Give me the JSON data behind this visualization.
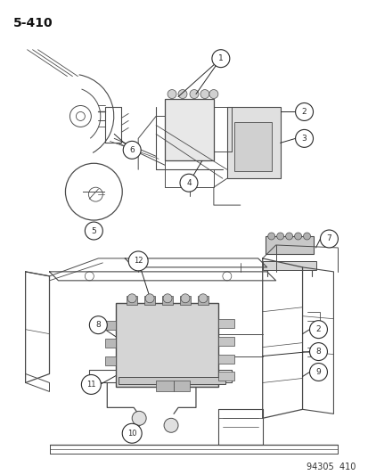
{
  "title": "5–410",
  "footer": "94305  410",
  "bg_color": "#ffffff",
  "lc": "#4a4a4a",
  "cc": "#2a2a2a",
  "figsize": [
    4.14,
    5.33
  ],
  "dpi": 100
}
